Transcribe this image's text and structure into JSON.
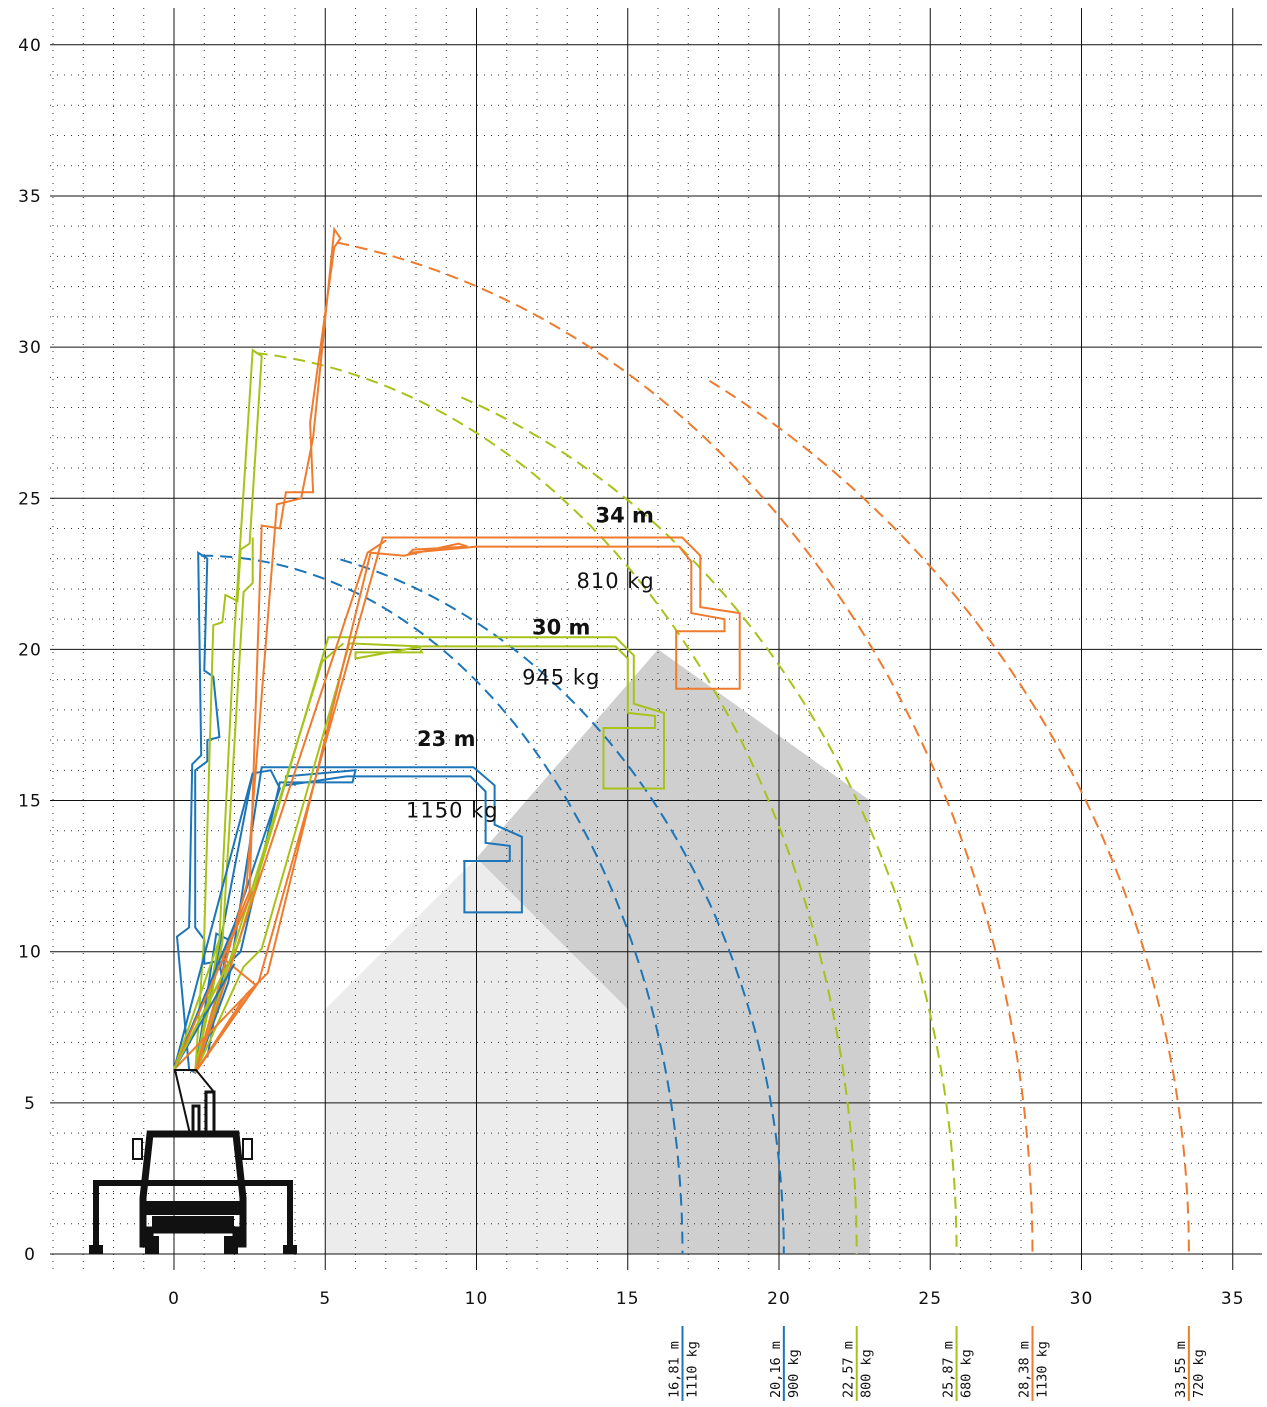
{
  "chart_data": {
    "type": "line",
    "title": "",
    "xlabel": "",
    "ylabel": "",
    "xlim": [
      -4,
      36
    ],
    "ylim": [
      0,
      40
    ],
    "x_ticks": [
      "0",
      "5",
      "10",
      "15",
      "20",
      "25",
      "30",
      "35"
    ],
    "y_ticks": [
      "0",
      "5",
      "10",
      "15",
      "20",
      "25",
      "30",
      "35",
      "40"
    ],
    "grid": true,
    "colors": {
      "blue": "#1b75b8",
      "green": "#a8c21a",
      "orange": "#ee7b2e",
      "zone_light": "#ececec",
      "zone_dark": "#cfcfcf"
    },
    "configs": [
      {
        "height_label": "23 m",
        "load_label": "1150 kg",
        "color": "#1b75b8",
        "top_height": 23.2,
        "max_height_at_reach": 16.0,
        "arc_end_reaches": [
          16.81,
          20.16
        ]
      },
      {
        "height_label": "30 m",
        "load_label": "945 kg",
        "color": "#a8c21a",
        "top_height": 30.0,
        "max_height_at_reach": 20.3,
        "arc_end_reaches": [
          22.57,
          25.87
        ]
      },
      {
        "height_label": "34 m",
        "load_label": "810 kg",
        "color": "#ee7b2e",
        "top_height": 34.0,
        "max_height_at_reach": 23.6,
        "arc_end_reaches": [
          28.38,
          33.55
        ]
      }
    ],
    "reach_labels": [
      {
        "reach": "16,81 m",
        "load": "1110 kg",
        "x": 16.81,
        "color": "#1b75b8"
      },
      {
        "reach": "20,16 m",
        "load": "900 kg",
        "x": 20.16,
        "color": "#1b75b8"
      },
      {
        "reach": "22,57 m",
        "load": "800 kg",
        "x": 22.57,
        "color": "#a8c21a"
      },
      {
        "reach": "25,87 m",
        "load": "680 kg",
        "x": 25.87,
        "color": "#a8c21a"
      },
      {
        "reach": "28,38 m",
        "load": "1130 kg",
        "x": 28.38,
        "color": "#ee7b2e"
      },
      {
        "reach": "33,55 m",
        "load": "720 kg",
        "x": 33.55,
        "color": "#ee7b2e"
      }
    ]
  }
}
